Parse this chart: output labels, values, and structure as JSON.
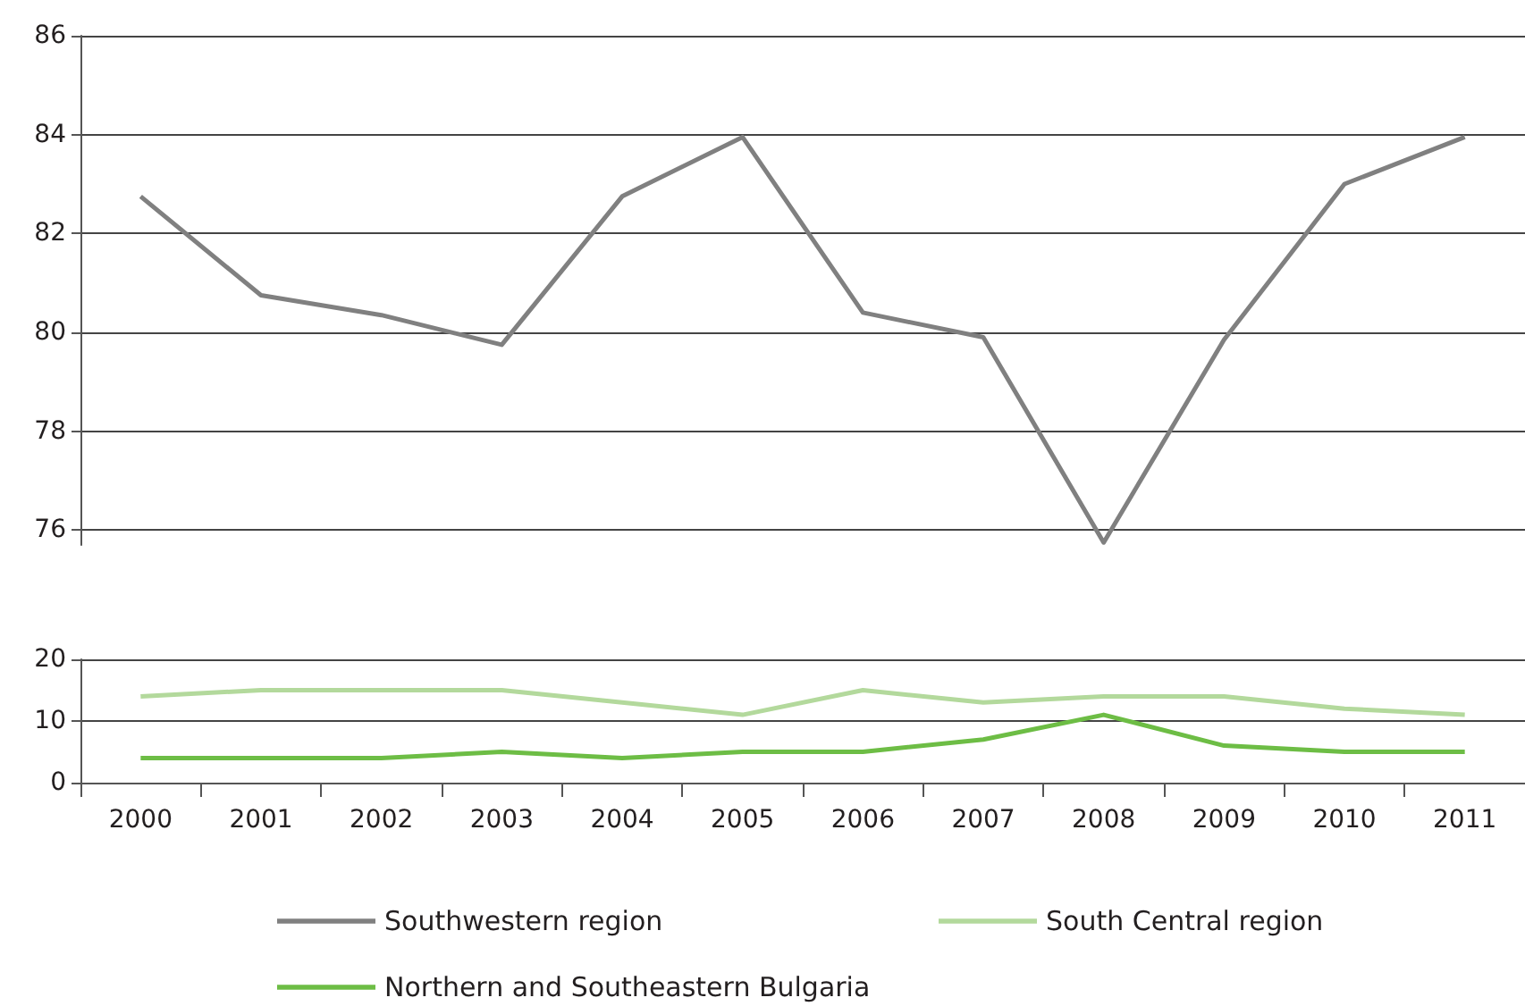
{
  "chart_data": [
    {
      "type": "line",
      "categories": [
        "2000",
        "2001",
        "2002",
        "2003",
        "2004",
        "2005",
        "2006",
        "2007",
        "2008",
        "2009",
        "2010",
        "2011"
      ],
      "series": [
        {
          "name": "Southwestern region",
          "color": "#808080",
          "values": [
            82.75,
            80.75,
            80.35,
            79.75,
            82.75,
            83.95,
            80.4,
            79.9,
            75.75,
            79.85,
            83.0,
            83.95
          ]
        }
      ],
      "ylim": [
        75.7,
        86
      ],
      "yticks": [
        76,
        78,
        80,
        82,
        84,
        86
      ],
      "grid": "y",
      "tick_labels": "y",
      "legend": "bottom",
      "marker": "none"
    },
    {
      "type": "line",
      "categories": [
        "2000",
        "2001",
        "2002",
        "2003",
        "2004",
        "2005",
        "2006",
        "2007",
        "2008",
        "2009",
        "2010",
        "2011"
      ],
      "series": [
        {
          "name": "South Central region",
          "color": "#b3d99c",
          "values": [
            14,
            15,
            15,
            15,
            13,
            11,
            15,
            13,
            14,
            14,
            12,
            11
          ]
        },
        {
          "name": "Northern and Southeastern Bulgaria",
          "color": "#6dbd45",
          "values": [
            4,
            4,
            4,
            5,
            4,
            5,
            5,
            7,
            11,
            6,
            5,
            5
          ]
        }
      ],
      "ylim": [
        0,
        20
      ],
      "yticks": [
        0,
        10,
        20
      ],
      "grid": "y",
      "legend": "bottom",
      "marker": "none"
    }
  ]
}
